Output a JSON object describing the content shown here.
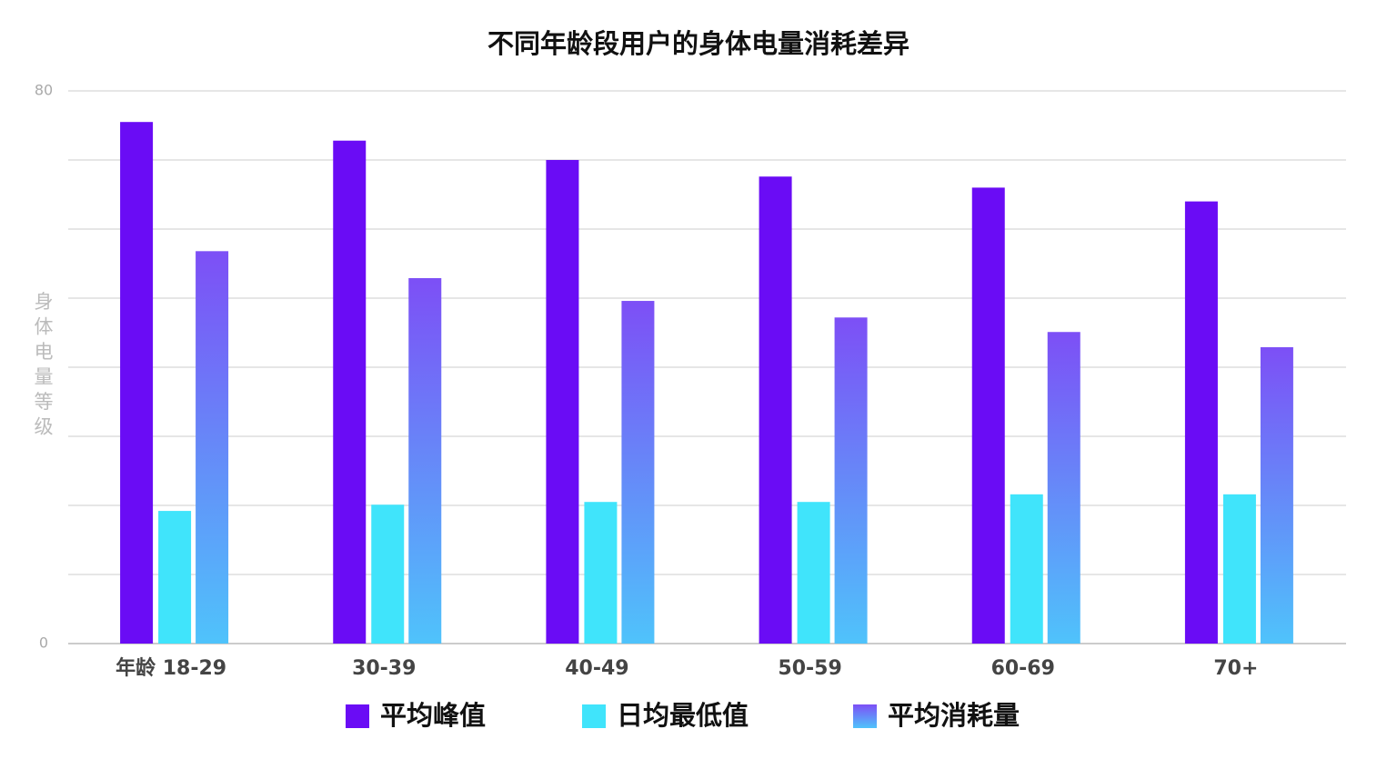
{
  "chart_data": {
    "type": "bar",
    "title": "不同年龄段用户的身体电量消耗差异",
    "y_label": "身体电量等级",
    "categories": [
      "年龄 18-29",
      "30-39",
      "40-49",
      "50-59",
      "60-69",
      "70+"
    ],
    "series": [
      {
        "name": "平均峰值",
        "color": "#6a0cf5",
        "values": [
          75.5,
          72.8,
          70,
          67.6,
          66,
          64
        ]
      },
      {
        "name": "日均最低值",
        "color": "#40e4fb",
        "values": [
          19.2,
          20.1,
          20.5,
          20.5,
          21.6,
          21.6
        ]
      },
      {
        "name": "平均消耗量",
        "color": "#7d4ff6",
        "gradient_to": "#4fc3fb",
        "values": [
          56.8,
          52.9,
          49.6,
          47.2,
          45.1,
          42.9
        ]
      }
    ],
    "ylim": [
      0,
      80
    ],
    "yticks": [
      0,
      80
    ],
    "grid_lines": [
      0,
      10,
      20,
      30,
      40,
      50,
      60,
      70,
      80
    ],
    "legend": "bottom"
  }
}
